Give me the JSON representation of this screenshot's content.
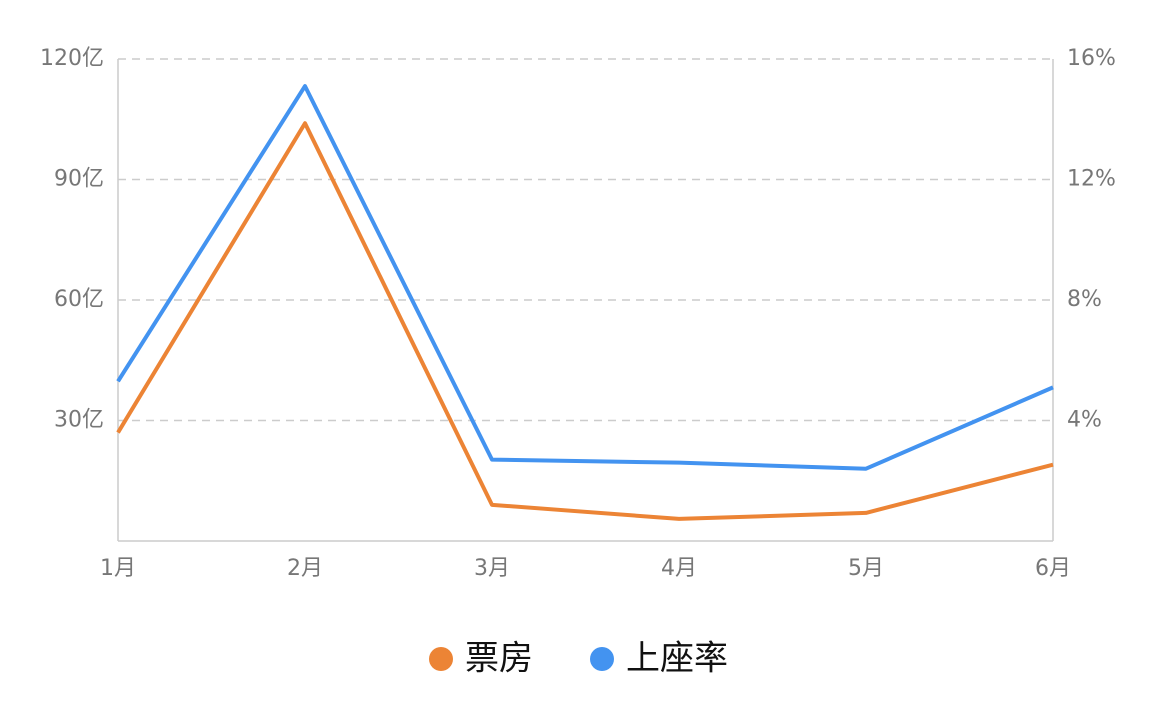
{
  "chart_data": {
    "type": "line",
    "categories": [
      "1月",
      "2月",
      "3月",
      "4月",
      "5月",
      "6月"
    ],
    "series": [
      {
        "name": "票房",
        "color": "#ec8435",
        "values": [
          27,
          104,
          9,
          5.5,
          7,
          19
        ]
      },
      {
        "name": "上座率",
        "color": "#4393f0",
        "axis": "y2",
        "values": [
          5.3,
          15.1,
          2.7,
          2.6,
          2.4,
          5.1
        ]
      }
    ],
    "ylim": [
      0,
      120
    ],
    "yticks": [
      {
        "value": 30,
        "label": "30亿"
      },
      {
        "value": 60,
        "label": "60亿"
      },
      {
        "value": 90,
        "label": "90亿"
      },
      {
        "value": 120,
        "label": "120亿"
      }
    ],
    "y2lim": [
      0,
      16
    ],
    "y2ticks": [
      {
        "value": 4,
        "label": "4%"
      },
      {
        "value": 8,
        "label": "8%"
      },
      {
        "value": 12,
        "label": "12%"
      },
      {
        "value": 16,
        "label": "16%"
      }
    ],
    "grid": true,
    "legend": "bottom"
  }
}
